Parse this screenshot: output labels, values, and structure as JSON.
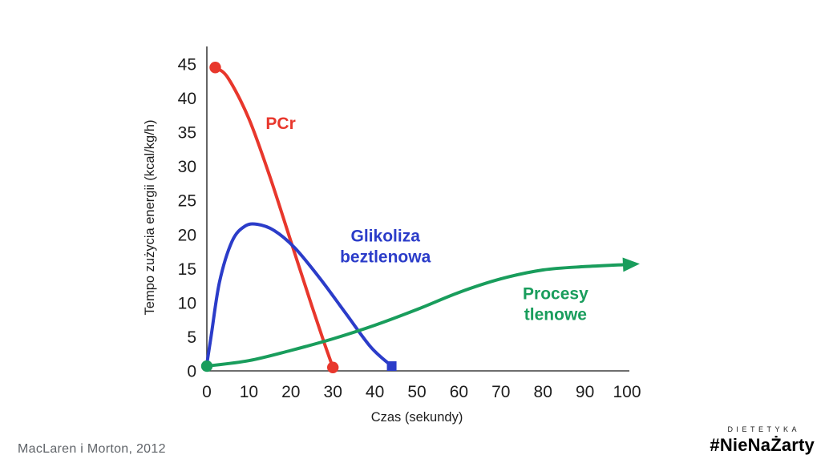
{
  "chart_data": {
    "type": "line",
    "title": "",
    "xlabel": "Czas (sekundy)",
    "ylabel": "Tempo zużycia energii (kcal/kg/h)",
    "xlim": [
      0,
      100
    ],
    "ylim": [
      0,
      45
    ],
    "xticks": [
      0,
      10,
      20,
      30,
      40,
      50,
      60,
      70,
      80,
      90,
      100
    ],
    "yticks": [
      0,
      5,
      10,
      15,
      20,
      25,
      30,
      35,
      40,
      45
    ],
    "grid": false,
    "legend": "inline-annotations",
    "colors": {
      "axis": "#3f3f3f",
      "text": "#1d1d1d"
    },
    "series": [
      {
        "name": "PCr",
        "color": "#e8372c",
        "points": [
          [
            2,
            44.5
          ],
          [
            5,
            43
          ],
          [
            10,
            37
          ],
          [
            15,
            28.5
          ],
          [
            20,
            19
          ],
          [
            25,
            9.5
          ],
          [
            28,
            4
          ],
          [
            30,
            0.5
          ]
        ],
        "start_marker": "circle",
        "end_marker": "circle",
        "label": {
          "lines": [
            "PCr"
          ],
          "x": 14,
          "y": 35.5,
          "align": "left"
        }
      },
      {
        "name": "Glikoliza beztlenowa",
        "color": "#2b3cc9",
        "points": [
          [
            0,
            1
          ],
          [
            1,
            5
          ],
          [
            3,
            13
          ],
          [
            6,
            19
          ],
          [
            9,
            21.2
          ],
          [
            12,
            21.5
          ],
          [
            16,
            20.6
          ],
          [
            21,
            18
          ],
          [
            27,
            13.5
          ],
          [
            33,
            8.5
          ],
          [
            39,
            3.5
          ],
          [
            44,
            0.7
          ]
        ],
        "start_marker": "none",
        "end_marker": "square",
        "label": {
          "lines": [
            "Glikoliza",
            "beztlenowa"
          ],
          "x": 42.5,
          "y": 19,
          "align": "center"
        }
      },
      {
        "name": "Procesy tlenowe",
        "color": "#199d5c",
        "points": [
          [
            0,
            0.7
          ],
          [
            10,
            1.5
          ],
          [
            20,
            3
          ],
          [
            30,
            4.7
          ],
          [
            40,
            6.7
          ],
          [
            50,
            9
          ],
          [
            60,
            11.5
          ],
          [
            70,
            13.5
          ],
          [
            80,
            14.8
          ],
          [
            90,
            15.3
          ],
          [
            100,
            15.6
          ]
        ],
        "start_marker": "circle",
        "end_marker": "arrow",
        "label": {
          "lines": [
            "Procesy",
            "tlenowe"
          ],
          "x": 83,
          "y": 10.5,
          "align": "center"
        }
      }
    ]
  },
  "footer": {
    "source": "MacLaren i Morton, 2012",
    "brand_top": "DIETETYKA",
    "brand_name": "#NieNaŻarty"
  }
}
